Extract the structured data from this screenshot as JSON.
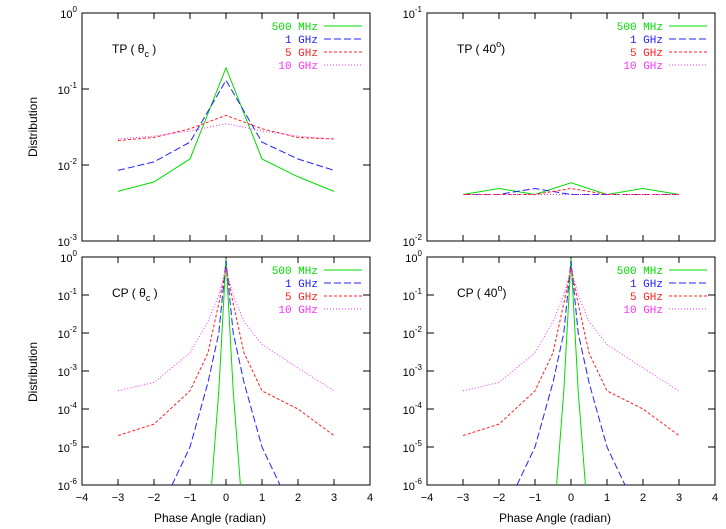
{
  "figure": {
    "ylabel": "Distribution",
    "xlabel": "Phase Angle (radian)",
    "colors": {
      "500 MHz": "#00dd00",
      "1 GHz": "#2222ff",
      "5 GHz": "#ff2222",
      "10 GHz": "#ff33ff"
    }
  },
  "chart_data": [
    {
      "type": "line",
      "label_main": "TP (",
      "label_sym": "θ",
      "label_sub": "c",
      "label_close": ")",
      "yscale": "log",
      "ylim": [
        0.001,
        1
      ],
      "xlim": [
        -4,
        4
      ],
      "yticks": [
        [
          "10",
          "-3",
          0.001
        ],
        [
          "10",
          "-2",
          0.01
        ],
        [
          "10",
          "-1",
          0.1
        ],
        [
          "10",
          "0",
          1
        ]
      ],
      "legend": [
        "500 MHz",
        "1 GHz",
        "5 GHz",
        "10 GHz"
      ],
      "legend_placement": "top-right",
      "x": [
        -3.0,
        -2.0,
        -1.0,
        0.0,
        1.0,
        2.0,
        3.0
      ],
      "series": [
        {
          "name": "500 MHz",
          "values": [
            0.0045,
            0.006,
            0.012,
            0.19,
            0.012,
            0.007,
            0.0045
          ]
        },
        {
          "name": "1 GHz",
          "values": [
            0.0085,
            0.011,
            0.02,
            0.13,
            0.02,
            0.012,
            0.0085
          ]
        },
        {
          "name": "5 GHz",
          "values": [
            0.021,
            0.023,
            0.03,
            0.045,
            0.03,
            0.023,
            0.022
          ]
        },
        {
          "name": "10 GHz",
          "values": [
            0.022,
            0.024,
            0.028,
            0.035,
            0.028,
            0.024,
            0.022
          ]
        }
      ]
    },
    {
      "type": "line",
      "label_main": "TP ( 40",
      "label_sym": "",
      "label_sup": "o",
      "label_close": ")",
      "yscale": "log",
      "ylim": [
        0.01,
        0.1
      ],
      "xlim": [
        -4,
        4
      ],
      "yticks": [
        [
          "10",
          "-2",
          0.01
        ],
        [
          "10",
          "-1",
          0.1
        ]
      ],
      "legend": [
        "500 MHz",
        "1 GHz",
        "5 GHz",
        "10 GHz"
      ],
      "legend_placement": "top-right",
      "x": [
        -3.0,
        -2.0,
        -1.0,
        0.0,
        1.0,
        2.0,
        3.0
      ],
      "series": [
        {
          "name": "500 MHz",
          "values": [
            0.016,
            0.017,
            0.016,
            0.018,
            0.016,
            0.017,
            0.016
          ]
        },
        {
          "name": "1 GHz",
          "values": [
            0.016,
            0.016,
            0.017,
            0.016,
            0.016,
            0.016,
            0.016
          ]
        },
        {
          "name": "5 GHz",
          "values": [
            0.016,
            0.016,
            0.016,
            0.017,
            0.016,
            0.016,
            0.016
          ]
        },
        {
          "name": "10 GHz",
          "values": [
            0.016,
            0.016,
            0.016,
            0.016,
            0.016,
            0.016,
            0.016
          ]
        }
      ]
    },
    {
      "type": "line",
      "label_main": "CP (",
      "label_sym": "θ",
      "label_sub": "c",
      "label_close": ")",
      "yscale": "log",
      "ylim": [
        1e-06,
        1
      ],
      "xlim": [
        -4,
        4
      ],
      "yticks": [
        [
          "10",
          "-6",
          1e-06
        ],
        [
          "10",
          "-5",
          1e-05
        ],
        [
          "10",
          "-4",
          0.0001
        ],
        [
          "10",
          "-3",
          0.001
        ],
        [
          "10",
          "-2",
          0.01
        ],
        [
          "10",
          "-1",
          0.1
        ],
        [
          "10",
          "0",
          1
        ]
      ],
      "legend": [
        "500 MHz",
        "1 GHz",
        "5 GHz",
        "10 GHz"
      ],
      "legend_placement": "top-right",
      "x": [
        -3.0,
        -2.0,
        -1.0,
        -0.5,
        -0.2,
        0.0,
        0.2,
        0.5,
        1.0,
        2.0,
        3.0
      ],
      "series": [
        {
          "name": "500 MHz",
          "x": [
            -0.4,
            -0.2,
            0.0,
            0.2,
            0.4
          ],
          "values": [
            1e-06,
            0.0003,
            0.9,
            0.0003,
            1e-06
          ]
        },
        {
          "name": "1 GHz",
          "x": [
            -1.5,
            -1.0,
            -0.5,
            -0.2,
            0.0,
            0.2,
            0.5,
            1.0,
            1.5
          ],
          "values": [
            1e-06,
            1e-05,
            0.0005,
            0.01,
            0.8,
            0.01,
            0.0005,
            1e-05,
            1e-06
          ]
        },
        {
          "name": "5 GHz",
          "values": [
            2e-05,
            4e-05,
            0.0003,
            0.003,
            0.06,
            0.5,
            0.06,
            0.003,
            0.0003,
            0.0001,
            2e-05
          ]
        },
        {
          "name": "10 GHz",
          "values": [
            0.0003,
            0.0005,
            0.003,
            0.02,
            0.1,
            0.5,
            0.1,
            0.02,
            0.005,
            0.0012,
            0.0003
          ]
        }
      ]
    },
    {
      "type": "line",
      "label_main": "CP ( 40",
      "label_sym": "",
      "label_sup": "o",
      "label_close": ")",
      "yscale": "log",
      "ylim": [
        1e-06,
        1
      ],
      "xlim": [
        -4,
        4
      ],
      "yticks": [
        [
          "10",
          "-6",
          1e-06
        ],
        [
          "10",
          "-5",
          1e-05
        ],
        [
          "10",
          "-4",
          0.0001
        ],
        [
          "10",
          "-3",
          0.001
        ],
        [
          "10",
          "-2",
          0.01
        ],
        [
          "10",
          "-1",
          0.1
        ],
        [
          "10",
          "0",
          1
        ]
      ],
      "legend": [
        "500 MHz",
        "1 GHz",
        "5 GHz",
        "10 GHz"
      ],
      "legend_placement": "top-right",
      "x": [
        -3.0,
        -2.0,
        -1.0,
        -0.5,
        -0.2,
        0.0,
        0.2,
        0.5,
        1.0,
        2.0,
        3.0
      ],
      "series": [
        {
          "name": "500 MHz",
          "x": [
            -0.4,
            -0.2,
            0.0,
            0.2,
            0.4
          ],
          "values": [
            1e-06,
            0.0003,
            0.9,
            0.0003,
            1e-06
          ]
        },
        {
          "name": "1 GHz",
          "x": [
            -1.5,
            -1.0,
            -0.5,
            -0.2,
            0.0,
            0.2,
            0.5,
            1.0,
            1.5
          ],
          "values": [
            1e-06,
            1e-05,
            0.0005,
            0.01,
            0.8,
            0.01,
            0.0005,
            1e-05,
            1e-06
          ]
        },
        {
          "name": "5 GHz",
          "values": [
            2e-05,
            4e-05,
            0.0003,
            0.003,
            0.06,
            0.5,
            0.06,
            0.003,
            0.0003,
            0.0001,
            2e-05
          ]
        },
        {
          "name": "10 GHz",
          "values": [
            0.0003,
            0.0005,
            0.003,
            0.02,
            0.1,
            0.5,
            0.1,
            0.02,
            0.005,
            0.0012,
            0.0003
          ]
        }
      ]
    }
  ],
  "xticks": [
    -4,
    -3,
    -2,
    -1,
    0,
    1,
    2,
    3,
    4
  ],
  "xtick_labels": [
    "−4",
    "−3",
    "−2",
    "−1",
    "0",
    "1",
    "2",
    "3",
    "4"
  ]
}
